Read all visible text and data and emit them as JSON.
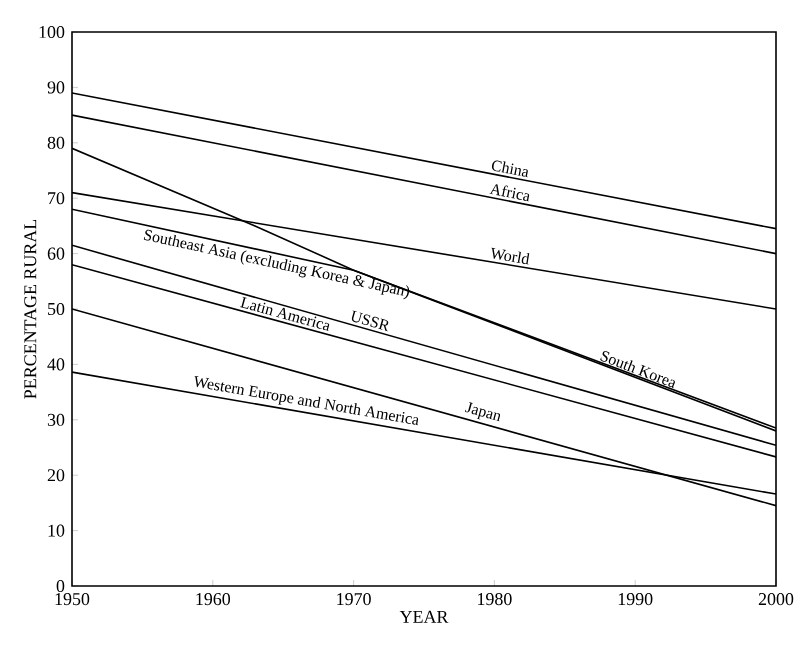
{
  "chart_data": {
    "type": "line",
    "xlabel": "YEAR",
    "ylabel": "PERCENTAGE RURAL",
    "xlim": [
      1950,
      2000
    ],
    "ylim": [
      0,
      100
    ],
    "xticks": [
      1950,
      1960,
      1970,
      1980,
      1990,
      2000
    ],
    "yticks": [
      0,
      10,
      20,
      30,
      40,
      50,
      60,
      70,
      80,
      90,
      100
    ],
    "grid": false,
    "legend": false,
    "marker": "none",
    "line_style": "solid",
    "series": [
      {
        "name": "China",
        "color": "#000000",
        "x": [
          1950,
          2000
        ],
        "values": [
          89,
          64.5
        ]
      },
      {
        "name": "Africa",
        "color": "#000000",
        "x": [
          1950,
          2000
        ],
        "values": [
          85,
          60
        ]
      },
      {
        "name": "World",
        "color": "#000000",
        "x": [
          1950,
          2000
        ],
        "values": [
          71,
          50
        ]
      },
      {
        "name": "South Korea",
        "color": "#000000",
        "x": [
          1950,
          1963,
          1970,
          2000
        ],
        "values": [
          79,
          65,
          57,
          28
        ]
      },
      {
        "name": "Southeast Asia (excluding Korea & Japan)",
        "color": "#000000",
        "x": [
          1950,
          1970,
          2000
        ],
        "values": [
          68,
          57,
          28.5
        ]
      },
      {
        "name": "USSR",
        "color": "#000000",
        "x": [
          1950,
          2000
        ],
        "values": [
          61.5,
          25.4
        ]
      },
      {
        "name": "Latin America",
        "color": "#000000",
        "x": [
          1950,
          2000
        ],
        "values": [
          58,
          23.3
        ]
      },
      {
        "name": "Japan",
        "color": "#000000",
        "x": [
          1950,
          2000
        ],
        "values": [
          50,
          14.5
        ]
      },
      {
        "name": "Western Europe and North America",
        "color": "#000000",
        "x": [
          1950,
          2000
        ],
        "values": [
          38.6,
          16.6
        ]
      }
    ]
  }
}
